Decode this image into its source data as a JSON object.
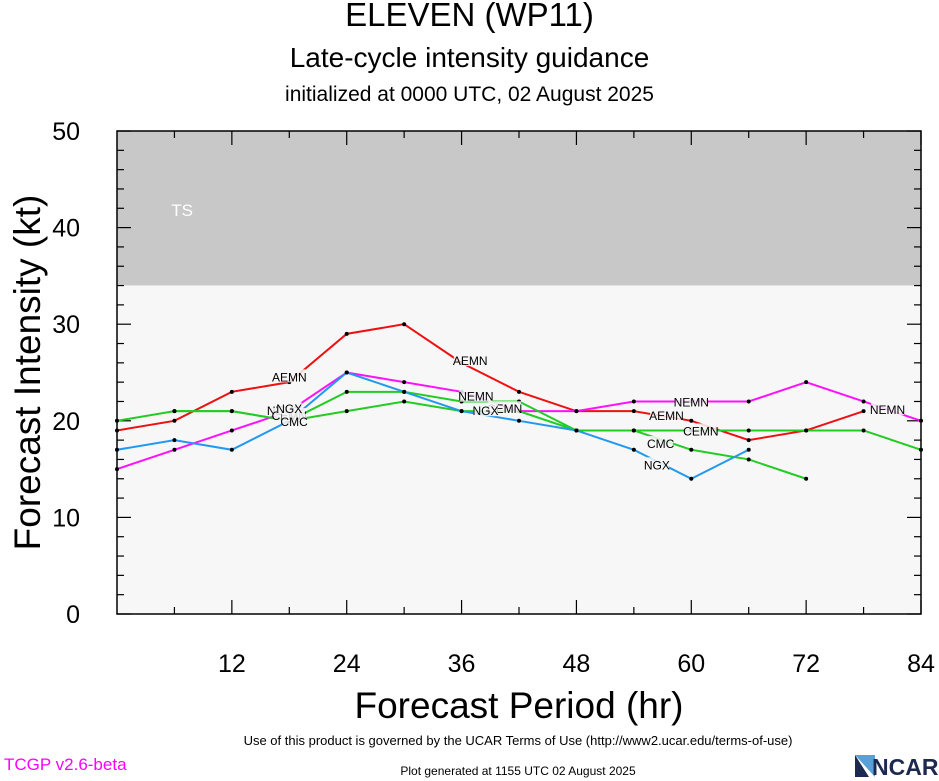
{
  "titles": {
    "main": "ELEVEN (WP11)",
    "sub": "Late-cycle intensity guidance",
    "init": "initialized at 0000 UTC, 02 August 2025"
  },
  "footer": {
    "terms": "Use of this product is governed by the UCAR Terms of Use (http://www2.ucar.edu/terms-of-use)",
    "version": "TCGP v2.6-beta",
    "generated": "Plot generated at 1155 UTC   02 August 2025",
    "logo": "NCAR"
  },
  "chart_data": {
    "type": "line",
    "xlabel": "Forecast Period (hr)",
    "ylabel": "Forecast Intensity (kt)",
    "xlim": [
      0,
      84
    ],
    "ylim": [
      0,
      50
    ],
    "xticks": [
      12,
      24,
      36,
      48,
      60,
      72,
      84
    ],
    "yticks": [
      0,
      10,
      20,
      30,
      40,
      50
    ],
    "bands": [
      {
        "label": "TS",
        "from": 34,
        "to": 50,
        "color": "#c8c8c8"
      },
      {
        "label": "",
        "from": 0,
        "to": 34,
        "color": "#f7f7f7"
      }
    ],
    "series": [
      {
        "name": "AEMN",
        "color": "#ee1111",
        "x": [
          0,
          6,
          12,
          18,
          24,
          30,
          36,
          42,
          48,
          54,
          60,
          66,
          72,
          78
        ],
        "y": [
          19,
          20,
          23,
          24,
          29,
          30,
          26,
          23,
          21,
          21,
          20,
          18,
          19,
          21
        ],
        "labels": [
          {
            "text": "AEMN",
            "x": 18,
            "y": 24.6
          },
          {
            "text": "AEMN",
            "x": 36.9,
            "y": 26.3
          },
          {
            "text": "AEMN",
            "x": 57.4,
            "y": 20.6
          }
        ]
      },
      {
        "name": "NEMN",
        "color": "#ff11ff",
        "x": [
          0,
          6,
          12,
          18,
          24,
          30,
          36,
          42,
          48,
          54,
          60,
          66,
          72,
          78,
          84
        ],
        "y": [
          15,
          17,
          19,
          21,
          25,
          24,
          23,
          21,
          21,
          22,
          22,
          22,
          24,
          22,
          20
        ],
        "labels": [
          {
            "text": "NEMN",
            "x": 17.5,
            "y": 21.1
          },
          {
            "text": "NEMN",
            "x": 37.5,
            "y": 22.6
          },
          {
            "text": "NEMN",
            "x": 60,
            "y": 22
          },
          {
            "text": "NEMN",
            "x": 80.5,
            "y": 21.2
          }
        ]
      },
      {
        "name": "CEMN",
        "color": "#22cc22",
        "x": [
          0,
          6,
          12,
          18,
          24,
          30,
          36,
          42,
          48,
          54,
          60,
          66,
          72,
          78,
          84
        ],
        "y": [
          20,
          21,
          21,
          20,
          23,
          23,
          22,
          22,
          19,
          19,
          19,
          19,
          19,
          19,
          17
        ],
        "labels": [
          {
            "text": "CEMN",
            "x": 18,
            "y": 20.6
          },
          {
            "text": "CEMN",
            "x": 40.5,
            "y": 21.3
          },
          {
            "text": "CEMN",
            "x": 61,
            "y": 19
          }
        ]
      },
      {
        "name": "CMC",
        "color": "#22cc22",
        "x": [
          6,
          12,
          18,
          24,
          30,
          36,
          42,
          48,
          54,
          60,
          66,
          72
        ],
        "y": [
          21,
          21,
          20,
          21,
          22,
          21,
          21,
          19,
          19,
          17,
          16,
          14
        ],
        "labels": [
          {
            "text": "CMC",
            "x": 18.5,
            "y": 20
          },
          {
            "text": "CMC",
            "x": 56.8,
            "y": 17.7
          }
        ]
      },
      {
        "name": "NGX",
        "color": "#2299ee",
        "x": [
          0,
          6,
          12,
          18,
          24,
          30,
          36,
          42,
          48,
          54,
          60,
          66
        ],
        "y": [
          17,
          18,
          17,
          20,
          25,
          23,
          21,
          20,
          19,
          17,
          14,
          17
        ],
        "labels": [
          {
            "text": "NGX",
            "x": 18,
            "y": 21.3
          },
          {
            "text": "NGX",
            "x": 38.5,
            "y": 21.1
          },
          {
            "text": "NGX",
            "x": 56.4,
            "y": 15.5
          }
        ]
      }
    ]
  }
}
